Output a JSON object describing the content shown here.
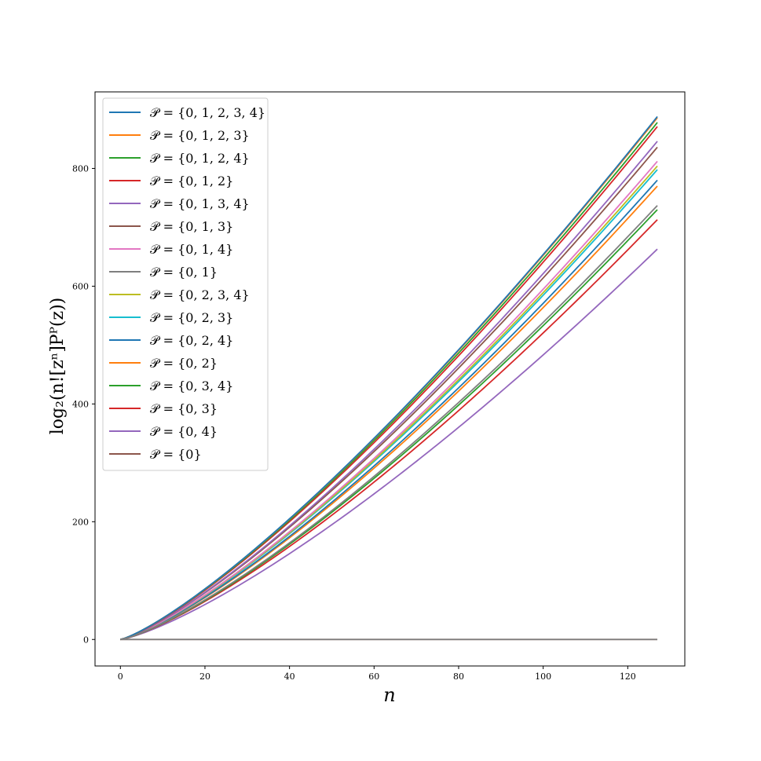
{
  "chart_data": {
    "type": "line",
    "xlabel": "n",
    "ylabel": "log₂(n![zⁿ]Pᴾ(z))",
    "xlim": [
      -6,
      133.5
    ],
    "ylim": [
      -45,
      930
    ],
    "xticks": [
      0,
      20,
      40,
      60,
      80,
      100,
      120
    ],
    "yticks": [
      0,
      200,
      400,
      600,
      800
    ],
    "grid": false,
    "legend": "top-left",
    "x_range": [
      0,
      127
    ],
    "series": [
      {
        "name": "𝒫 = {0, 1, 2, 3, 4}",
        "color": "#1f77b4",
        "end": 888,
        "curve": 0.7
      },
      {
        "name": "𝒫 = {0, 1, 2, 3}",
        "color": "#ff7f0e",
        "end": 886,
        "curve": 0.7
      },
      {
        "name": "𝒫 = {0, 1, 2, 4}",
        "color": "#2ca02c",
        "end": 878,
        "curve": 0.7
      },
      {
        "name": "𝒫 = {0, 1, 2}",
        "color": "#d62728",
        "end": 871,
        "curve": 0.71
      },
      {
        "name": "𝒫 = {0, 1, 3, 4}",
        "color": "#9467bd",
        "end": 846,
        "curve": 0.73
      },
      {
        "name": "𝒫 = {0, 1, 3}",
        "color": "#8c564b",
        "end": 836,
        "curve": 0.73
      },
      {
        "name": "𝒫 = {0, 1, 4}",
        "color": "#e377c2",
        "end": 812,
        "curve": 0.76
      },
      {
        "name": "𝒫 = {0, 1}",
        "color": "#7f7f7f",
        "end": 0,
        "curve": 0
      },
      {
        "name": "𝒫 = {0, 2, 3, 4}",
        "color": "#bcbd22",
        "end": 804,
        "curve": 0.76
      },
      {
        "name": "𝒫 = {0, 2, 3}",
        "color": "#17becf",
        "end": 798,
        "curve": 0.76
      },
      {
        "name": "𝒫 = {0, 2, 4}",
        "color": "#1f77b4",
        "end": 780,
        "curve": 0.77
      },
      {
        "name": "𝒫 = {0, 2}",
        "color": "#ff7f0e",
        "end": 770,
        "curve": 0.77
      },
      {
        "name": "𝒫 = {0, 3, 4}",
        "color": "#2ca02c",
        "end": 730,
        "curve": 0.8
      },
      {
        "name": "𝒫 = {0, 3}",
        "color": "#d62728",
        "end": 713,
        "curve": 0.8
      },
      {
        "name": "𝒫 = {0, 4}",
        "color": "#9467bd",
        "end": 663,
        "curve": 0.82
      },
      {
        "name": "𝒫 = {0}",
        "color": "#8c564b",
        "end": 0,
        "curve": 0
      }
    ],
    "extra_gray_end": 737
  }
}
